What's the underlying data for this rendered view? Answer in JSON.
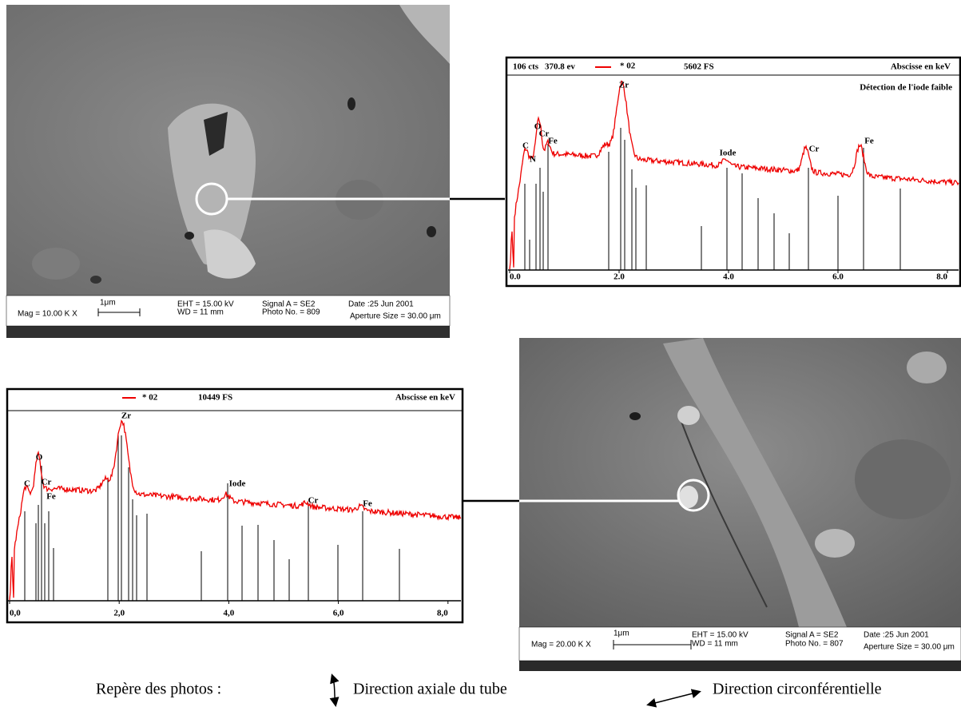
{
  "sem_images": [
    {
      "mag": "Mag = 10.00 K X",
      "scale": "1μm",
      "eht": "EHT = 15.00 kV",
      "wd": "WD = 11 mm",
      "signal": "Signal A = SE2",
      "photo": "Photo No. = 809",
      "date": "Date :25 Jun 2001",
      "aperture": "Aperture Size = 30.00 μm"
    },
    {
      "mag": "Mag = 20.00 K X",
      "scale": "1μm",
      "eht": "EHT = 15.00 kV",
      "wd": "WD = 11 mm",
      "signal": "Signal A = SE2",
      "photo": "Photo No. = 807",
      "date": "Date :25 Jun 2001",
      "aperture": "Aperture Size = 30.00 μm"
    }
  ],
  "spectra": [
    {
      "header": [
        "106 cts",
        "370.8 ev",
        "* 02",
        "5602 FS"
      ],
      "axis_title": "Abscisse en keV",
      "note": "Détection de l'iode faible",
      "x_tick_labels": [
        "0.0",
        "2.0",
        "4.0",
        "6.0",
        "8.0"
      ],
      "peak_labels": [
        "C",
        "N",
        "O",
        "Cr",
        "Fe",
        "Zr",
        "Iode",
        "Cr",
        "Fe"
      ]
    },
    {
      "header": [
        "* 02",
        "10449 FS"
      ],
      "axis_title": "Abscisse en keV",
      "x_tick_labels": [
        "0,0",
        "2,0",
        "4,0",
        "6,0",
        "8,0"
      ],
      "peak_labels": [
        "C",
        "O",
        "Cr",
        "Fe",
        "Zr",
        "Iode",
        "Cr",
        "Fe"
      ]
    }
  ],
  "legend": {
    "title": "Repère des photos :",
    "axial": "Direction axiale du tube",
    "circumferential": "Direction circonférentielle"
  }
}
